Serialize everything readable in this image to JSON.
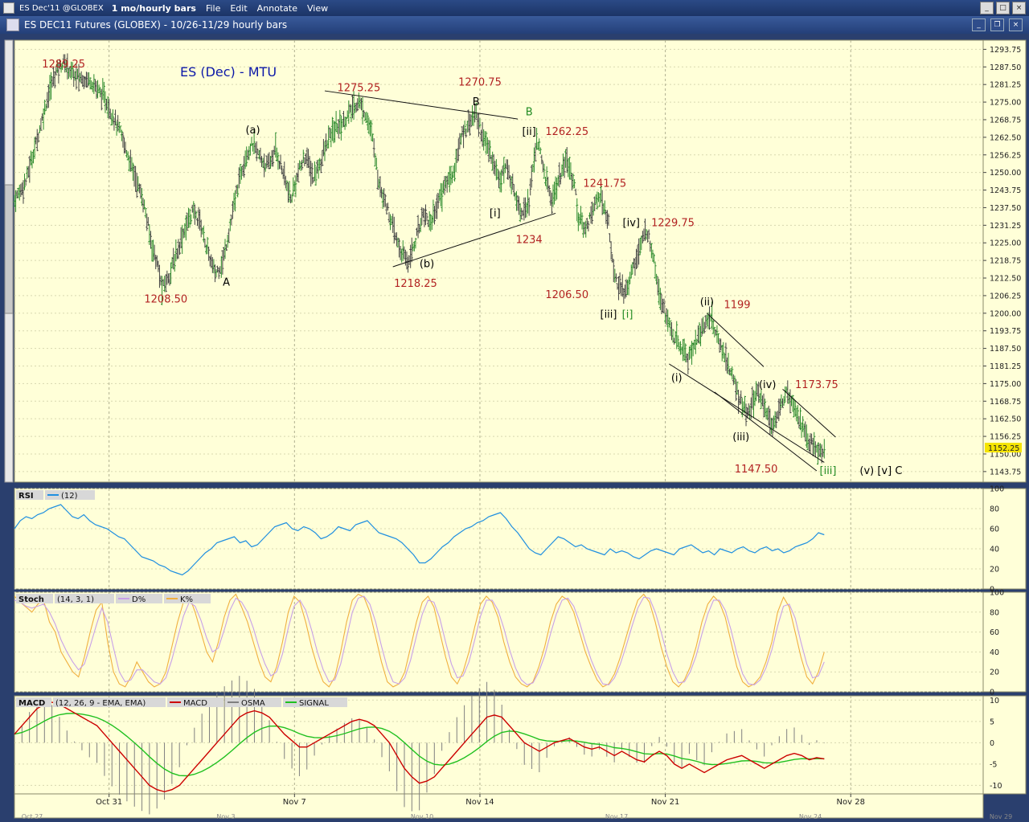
{
  "app": {
    "ticker": "ES Dec'11 @GLOBEX",
    "period": "1 mo/hourly bars",
    "menus": [
      "File",
      "Edit",
      "Annotate",
      "View"
    ],
    "doc_title": "ES DEC11 Futures (GLOBEX) - 10/26-11/29  hourly bars"
  },
  "colors": {
    "panel_bg": "#ffffd8",
    "bar": "#444444",
    "up_bar": "#2e8b2e",
    "price_label": "#b22222",
    "wave_black": "#000000",
    "wave_green": "#228b22",
    "title_blue": "#0b17a8",
    "rsi": "#1f8fe0",
    "d_line": "#c8a0e8",
    "k_line": "#f0b040",
    "macd": "#cc0000",
    "signal": "#20c020",
    "osma": "#808080"
  },
  "chart_data": {
    "type": "candlestick-ohlc",
    "title": "ES (Dec) - MTU",
    "price_axis": {
      "ylim": [
        1140,
        1297
      ],
      "ticks": [
        "1293.75",
        "1287.50",
        "1281.25",
        "1275.00",
        "1268.75",
        "1262.50",
        "1256.25",
        "1250.00",
        "1243.75",
        "1237.50",
        "1231.25",
        "1225.00",
        "1218.75",
        "1212.50",
        "1206.25",
        "1200.00",
        "1193.75",
        "1187.50",
        "1181.25",
        "1175.00",
        "1168.75",
        "1162.50",
        "1156.25",
        "1150.00",
        "1143.75"
      ],
      "last_price": "1152.25"
    },
    "x_axis": {
      "labels": [
        "Oct 31",
        "Nov 7",
        "Nov 14",
        "Nov 21",
        "Nov 28"
      ],
      "small_labels": [
        "Oct 27",
        "Nov 3",
        "Nov 10",
        "Nov 17",
        "Nov 24",
        "Nov 29"
      ]
    },
    "price_path": [
      [
        0,
        1240
      ],
      [
        3,
        1247
      ],
      [
        6,
        1262
      ],
      [
        9,
        1278
      ],
      [
        11,
        1286
      ],
      [
        13,
        1289.25
      ],
      [
        16,
        1284
      ],
      [
        20,
        1283
      ],
      [
        24,
        1276
      ],
      [
        28,
        1264
      ],
      [
        31,
        1252
      ],
      [
        34,
        1240
      ],
      [
        36,
        1226
      ],
      [
        38,
        1216
      ],
      [
        39,
        1208.5
      ],
      [
        41,
        1214
      ],
      [
        43,
        1222
      ],
      [
        45,
        1230
      ],
      [
        47,
        1236
      ],
      [
        49,
        1233
      ],
      [
        51,
        1222
      ],
      [
        53,
        1214
      ],
      [
        55,
        1218
      ],
      [
        57,
        1231
      ],
      [
        59,
        1245
      ],
      [
        61,
        1256
      ],
      [
        63,
        1260
      ],
      [
        65,
        1255
      ],
      [
        67,
        1252
      ],
      [
        69,
        1258
      ],
      [
        71,
        1250
      ],
      [
        73,
        1240
      ],
      [
        75,
        1250
      ],
      [
        77,
        1256
      ],
      [
        79,
        1248
      ],
      [
        81,
        1254
      ],
      [
        83,
        1262
      ],
      [
        85,
        1266
      ],
      [
        87,
        1268
      ],
      [
        89,
        1272
      ],
      [
        91,
        1275.25
      ],
      [
        93,
        1270
      ],
      [
        95,
        1260
      ],
      [
        96,
        1248
      ],
      [
        98,
        1240
      ],
      [
        100,
        1230
      ],
      [
        102,
        1222
      ],
      [
        104,
        1218.25
      ],
      [
        106,
        1226
      ],
      [
        108,
        1236
      ],
      [
        110,
        1232
      ],
      [
        112,
        1240
      ],
      [
        114,
        1246
      ],
      [
        116,
        1250
      ],
      [
        118,
        1262
      ],
      [
        120,
        1268
      ],
      [
        122,
        1270.75
      ],
      [
        124,
        1262
      ],
      [
        126,
        1256
      ],
      [
        128,
        1248
      ],
      [
        130,
        1252
      ],
      [
        132,
        1244
      ],
      [
        134,
        1236
      ],
      [
        136,
        1240
      ],
      [
        138,
        1262.25
      ],
      [
        140,
        1250
      ],
      [
        142,
        1240
      ],
      [
        144,
        1248
      ],
      [
        146,
        1254
      ],
      [
        148,
        1246
      ],
      [
        149,
        1234
      ],
      [
        151,
        1230
      ],
      [
        153,
        1238
      ],
      [
        155,
        1241.75
      ],
      [
        157,
        1232
      ],
      [
        158,
        1218
      ],
      [
        159,
        1212
      ],
      [
        161,
        1206.5
      ],
      [
        163,
        1214
      ],
      [
        165,
        1222
      ],
      [
        167,
        1229.75
      ],
      [
        169,
        1220
      ],
      [
        170,
        1210
      ],
      [
        172,
        1200
      ],
      [
        174,
        1192
      ],
      [
        176,
        1188
      ],
      [
        178,
        1184
      ],
      [
        180,
        1190
      ],
      [
        182,
        1195
      ],
      [
        184,
        1199
      ],
      [
        186,
        1190
      ],
      [
        188,
        1184
      ],
      [
        190,
        1176
      ],
      [
        192,
        1168
      ],
      [
        194,
        1164
      ],
      [
        196,
        1172
      ],
      [
        198,
        1168
      ],
      [
        200,
        1160
      ],
      [
        202,
        1164
      ],
      [
        204,
        1173.75
      ],
      [
        206,
        1168
      ],
      [
        208,
        1160
      ],
      [
        210,
        1154
      ],
      [
        212,
        1152
      ],
      [
        213,
        1150
      ],
      [
        214,
        1152.25
      ]
    ],
    "n_bars": 256,
    "annotations": [
      {
        "text": "1289.25",
        "bar": 13,
        "price": 1288.5,
        "kind": "price"
      },
      {
        "text": "1208.50",
        "bar": 40,
        "price": 1205.0,
        "kind": "price"
      },
      {
        "text": "A",
        "bar": 56,
        "price": 1211.0,
        "kind": "wave"
      },
      {
        "text": "(a)",
        "bar": 63,
        "price": 1265.0,
        "kind": "wave"
      },
      {
        "text": "1275.25",
        "bar": 91,
        "price": 1280.0,
        "kind": "price"
      },
      {
        "text": "1270.75",
        "bar": 123,
        "price": 1282.0,
        "kind": "price"
      },
      {
        "text": "B",
        "bar": 122,
        "price": 1275.0,
        "kind": "wave"
      },
      {
        "text": "B",
        "bar": 136,
        "price": 1271.5,
        "kind": "wave-green"
      },
      {
        "text": "[ii]",
        "bar": 136,
        "price": 1264.5,
        "kind": "wave"
      },
      {
        "text": "1262.25",
        "bar": 146,
        "price": 1264.5,
        "kind": "price"
      },
      {
        "text": "1241.75",
        "bar": 156,
        "price": 1246.0,
        "kind": "price"
      },
      {
        "text": "[i]",
        "bar": 127,
        "price": 1235.5,
        "kind": "wave"
      },
      {
        "text": "1234",
        "bar": 136,
        "price": 1226.0,
        "kind": "price"
      },
      {
        "text": "(b)",
        "bar": 109,
        "price": 1217.5,
        "kind": "wave"
      },
      {
        "text": "1218.25",
        "bar": 106,
        "price": 1210.5,
        "kind": "price"
      },
      {
        "text": "[iv]",
        "bar": 163,
        "price": 1232.0,
        "kind": "wave"
      },
      {
        "text": "1229.75",
        "bar": 174,
        "price": 1232.0,
        "kind": "price"
      },
      {
        "text": "1206.50",
        "bar": 146,
        "price": 1206.5,
        "kind": "price"
      },
      {
        "text": "[iii]",
        "bar": 157,
        "price": 1199.5,
        "kind": "wave"
      },
      {
        "text": "[i]",
        "bar": 162,
        "price": 1199.5,
        "kind": "wave-green"
      },
      {
        "text": "(ii)",
        "bar": 183,
        "price": 1204.0,
        "kind": "wave"
      },
      {
        "text": "1199",
        "bar": 191,
        "price": 1203.0,
        "kind": "price"
      },
      {
        "text": "(i)",
        "bar": 175,
        "price": 1177.0,
        "kind": "wave"
      },
      {
        "text": "(iv)",
        "bar": 199,
        "price": 1174.5,
        "kind": "wave"
      },
      {
        "text": "1173.75",
        "bar": 212,
        "price": 1174.5,
        "kind": "price"
      },
      {
        "text": "(iii)",
        "bar": 192,
        "price": 1156.0,
        "kind": "wave"
      },
      {
        "text": "1147.50",
        "bar": 196,
        "price": 1144.5,
        "kind": "price"
      },
      {
        "text": "[iii]",
        "bar": 215,
        "price": 1144.0,
        "kind": "wave-green"
      },
      {
        "text": "(v) [v] C",
        "bar": 229,
        "price": 1144.0,
        "kind": "wave"
      }
    ],
    "trendlines": [
      {
        "from": [
          82,
          1279
        ],
        "to": [
          133,
          1269
        ]
      },
      {
        "from": [
          100,
          1216.5
        ],
        "to": [
          143,
          1235.5
        ]
      },
      {
        "from": [
          183,
          1200
        ],
        "to": [
          198,
          1181
        ]
      },
      {
        "from": [
          173,
          1182
        ],
        "to": [
          214,
          1147
        ]
      },
      {
        "from": [
          203,
          1173
        ],
        "to": [
          217,
          1156
        ]
      },
      {
        "from": [
          185,
          1172
        ],
        "to": [
          212,
          1144
        ]
      }
    ],
    "rsi": {
      "label": "RSI",
      "param": "(12)",
      "ylim": [
        0,
        100
      ],
      "ticks": [
        100,
        80,
        60,
        40,
        20,
        0
      ],
      "values": [
        60,
        68,
        72,
        70,
        74,
        76,
        80,
        82,
        84,
        78,
        72,
        70,
        74,
        68,
        64,
        62,
        60,
        56,
        52,
        50,
        44,
        38,
        32,
        30,
        28,
        24,
        22,
        18,
        16,
        14,
        18,
        24,
        30,
        36,
        40,
        46,
        48,
        50,
        52,
        46,
        48,
        42,
        44,
        50,
        56,
        62,
        64,
        66,
        60,
        58,
        62,
        60,
        56,
        50,
        52,
        56,
        62,
        60,
        58,
        64,
        66,
        68,
        62,
        56,
        54,
        52,
        50,
        46,
        40,
        34,
        26,
        26,
        30,
        36,
        42,
        46,
        52,
        56,
        60,
        62,
        66,
        68,
        72,
        74,
        76,
        70,
        62,
        56,
        48,
        40,
        36,
        34,
        40,
        46,
        52,
        50,
        46,
        42,
        44,
        40,
        38,
        36,
        34,
        40,
        36,
        38,
        36,
        32,
        30,
        34,
        38,
        40,
        38,
        36,
        34,
        40,
        42,
        44,
        40,
        36,
        38,
        34,
        40,
        38,
        36,
        40,
        42,
        38,
        36,
        40,
        42,
        38,
        40,
        36,
        38,
        42,
        44,
        46,
        50,
        56,
        54
      ]
    },
    "stoch": {
      "label": "Stoch",
      "param": "(14, 3, 1)",
      "series": [
        {
          "name": "D%"
        },
        {
          "name": "K%"
        }
      ],
      "ylim": [
        0,
        100
      ],
      "ticks": [
        100,
        80,
        60,
        40,
        20,
        0
      ],
      "k_values": [
        96,
        90,
        85,
        80,
        88,
        92,
        70,
        60,
        40,
        30,
        20,
        15,
        35,
        60,
        82,
        90,
        50,
        20,
        8,
        5,
        15,
        30,
        20,
        10,
        5,
        8,
        20,
        45,
        70,
        90,
        96,
        80,
        60,
        40,
        30,
        50,
        75,
        92,
        98,
        85,
        70,
        50,
        30,
        15,
        10,
        25,
        50,
        80,
        96,
        90,
        70,
        45,
        25,
        10,
        5,
        15,
        40,
        70,
        92,
        98,
        95,
        80,
        55,
        30,
        10,
        5,
        8,
        20,
        45,
        70,
        90,
        96,
        85,
        60,
        35,
        15,
        8,
        20,
        40,
        65,
        88,
        96,
        90,
        75,
        50,
        30,
        15,
        8,
        5,
        10,
        25,
        45,
        70,
        88,
        96,
        92,
        80,
        60,
        40,
        25,
        12,
        5,
        8,
        18,
        35,
        55,
        75,
        92,
        98,
        90,
        70,
        45,
        25,
        10,
        5,
        12,
        25,
        45,
        70,
        88,
        96,
        90,
        75,
        50,
        25,
        10,
        5,
        8,
        15,
        30,
        50,
        80,
        95,
        85,
        60,
        35,
        15,
        8,
        20,
        40
      ],
      "d_values": [
        92,
        90,
        86,
        84,
        86,
        88,
        80,
        68,
        52,
        40,
        30,
        22,
        28,
        46,
        66,
        84,
        70,
        44,
        20,
        10,
        12,
        22,
        22,
        16,
        10,
        8,
        14,
        32,
        54,
        76,
        90,
        86,
        72,
        54,
        40,
        44,
        62,
        82,
        94,
        90,
        80,
        64,
        44,
        28,
        16,
        20,
        38,
        64,
        86,
        92,
        82,
        62,
        40,
        22,
        10,
        12,
        28,
        54,
        80,
        94,
        96,
        88,
        70,
        46,
        24,
        10,
        8,
        14,
        32,
        56,
        78,
        92,
        90,
        74,
        50,
        28,
        14,
        16,
        30,
        52,
        76,
        92,
        92,
        82,
        64,
        42,
        24,
        12,
        7,
        9,
        20,
        36,
        58,
        78,
        92,
        94,
        86,
        70,
        50,
        32,
        18,
        8,
        7,
        14,
        28,
        46,
        66,
        84,
        95,
        94,
        80,
        60,
        38,
        20,
        9,
        10,
        20,
        36,
        58,
        78,
        92,
        92,
        82,
        62,
        38,
        18,
        8,
        7,
        12,
        24,
        42,
        66,
        86,
        88,
        74,
        50,
        28,
        14,
        16,
        30
      ]
    },
    "macd": {
      "label": "MACD",
      "param": "(12, 26, 9 - EMA, EMA)",
      "series": [
        {
          "name": "MACD"
        },
        {
          "name": "OSMA"
        },
        {
          "name": "SIGNAL"
        }
      ],
      "ylim": [
        -12,
        11
      ],
      "ticks": [
        10,
        5,
        0,
        -5,
        -10
      ],
      "macd_values": [
        2,
        4,
        6,
        8,
        9,
        9.5,
        9,
        8,
        7,
        6,
        5,
        4,
        2,
        0,
        -2,
        -4,
        -6,
        -8,
        -10,
        -11,
        -11.5,
        -11,
        -10,
        -8,
        -6,
        -4,
        -2,
        0,
        2,
        4,
        6,
        7,
        7.5,
        7,
        6,
        4,
        2,
        0.5,
        -1,
        -1,
        0,
        1,
        2,
        3,
        4,
        5,
        5.5,
        5,
        4,
        2,
        0,
        -3,
        -6,
        -8,
        -9.5,
        -9,
        -8,
        -6,
        -4,
        -2,
        0,
        2,
        4,
        6,
        6.5,
        6,
        4,
        2,
        0,
        -1,
        -2,
        -1,
        0,
        0.5,
        1,
        0,
        -1,
        -1.5,
        -1,
        -2,
        -3,
        -2,
        -3,
        -4,
        -4.5,
        -3,
        -2,
        -3,
        -5,
        -6,
        -5,
        -6,
        -7,
        -6,
        -5,
        -4,
        -3.5,
        -3,
        -4,
        -5,
        -6,
        -5,
        -4,
        -3,
        -2.5,
        -3,
        -4,
        -3.5,
        -3.8
      ]
    }
  }
}
